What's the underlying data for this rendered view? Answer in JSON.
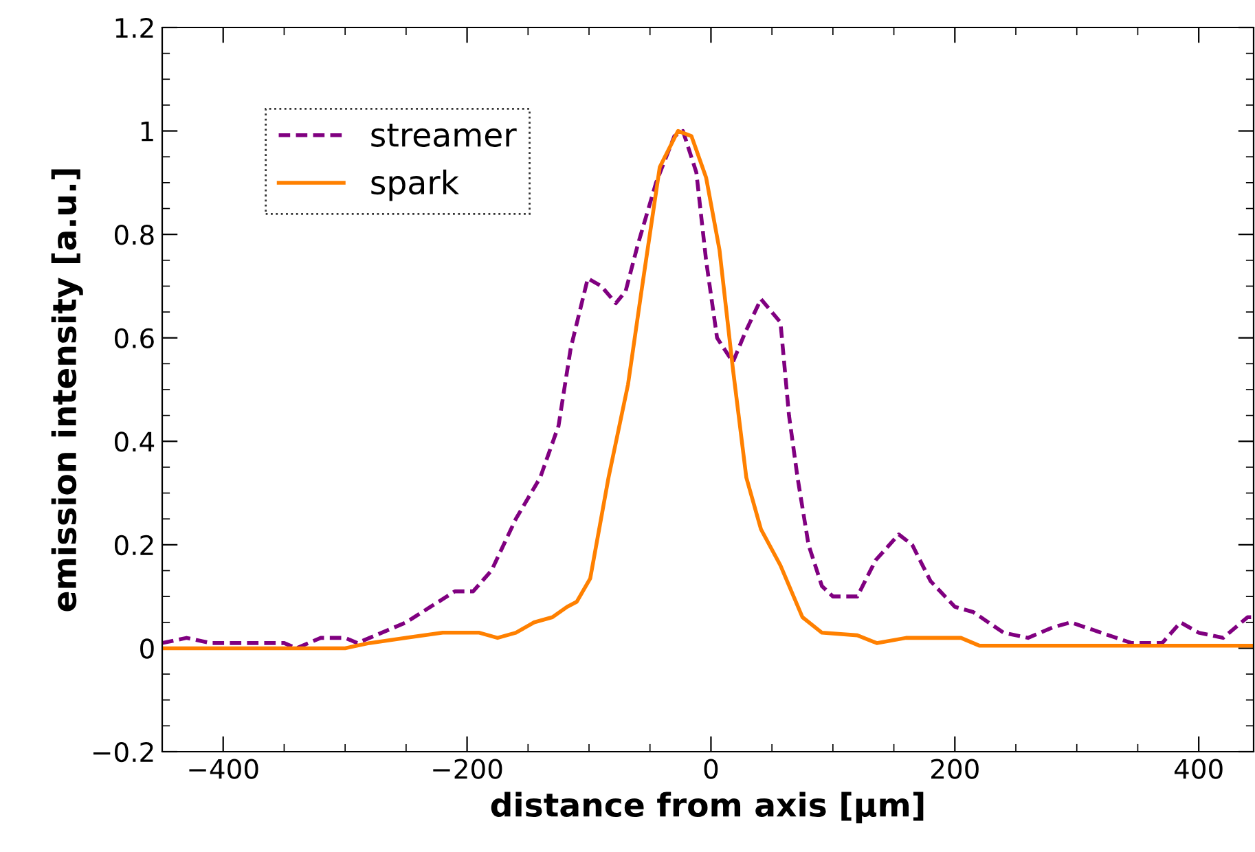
{
  "chart_data": {
    "type": "line",
    "xlabel": "distance from axis [µm]",
    "ylabel": "emission intensity [a.u.]",
    "xlim": [
      -450,
      445
    ],
    "ylim": [
      -0.2,
      1.2
    ],
    "xticks": [
      {
        "value": -400,
        "label": "−400"
      },
      {
        "value": -200,
        "label": "−200"
      },
      0,
      200,
      400
    ],
    "yticks": [
      {
        "value": -0.2,
        "label": "−0.2"
      },
      0,
      0.2,
      0.4,
      0.6,
      0.8,
      1,
      1.2
    ],
    "grid": false,
    "legend": "top left",
    "series": [
      {
        "name": "streamer",
        "color": "#800080",
        "line_style": "dashed",
        "x": [
          -450,
          -430,
          -410,
          -380,
          -350,
          -340,
          -320,
          -300,
          -290,
          -270,
          -250,
          -230,
          -210,
          -195,
          -180,
          -160,
          -140,
          -125,
          -115,
          -101,
          -90,
          -78,
          -70,
          -60,
          -45,
          -30,
          -23,
          -12,
          -4,
          5,
          18,
          28,
          41,
          57,
          64,
          71,
          80,
          91,
          100,
          120,
          135,
          154,
          165,
          180,
          200,
          215,
          240,
          260,
          280,
          295,
          320,
          345,
          370,
          385,
          400,
          420,
          440,
          445
        ],
        "values": [
          0.01,
          0.02,
          0.01,
          0.01,
          0.01,
          0.0,
          0.02,
          0.02,
          0.01,
          0.03,
          0.05,
          0.08,
          0.11,
          0.11,
          0.15,
          0.25,
          0.33,
          0.43,
          0.58,
          0.715,
          0.7,
          0.667,
          0.69,
          0.78,
          0.9,
          0.99,
          1.0,
          0.92,
          0.75,
          0.6,
          0.553,
          0.61,
          0.675,
          0.63,
          0.45,
          0.33,
          0.2,
          0.12,
          0.1,
          0.1,
          0.17,
          0.22,
          0.2,
          0.13,
          0.08,
          0.07,
          0.03,
          0.02,
          0.04,
          0.05,
          0.03,
          0.01,
          0.01,
          0.05,
          0.03,
          0.02,
          0.06,
          0.06
        ]
      },
      {
        "name": "spark",
        "color": "#ff8000",
        "line_style": "solid",
        "x": [
          -450,
          -400,
          -350,
          -300,
          -280,
          -250,
          -220,
          -190,
          -175,
          -160,
          -145,
          -130,
          -118,
          -110,
          -99,
          -84,
          -68,
          -57,
          -42,
          -27,
          -16,
          -4,
          7,
          18,
          29,
          41,
          57,
          75,
          91,
          120,
          136,
          160,
          205,
          220,
          300,
          380,
          445
        ],
        "values": [
          0.0,
          0.0,
          0.0,
          0.0,
          0.01,
          0.02,
          0.03,
          0.03,
          0.02,
          0.03,
          0.05,
          0.06,
          0.08,
          0.09,
          0.135,
          0.33,
          0.51,
          0.69,
          0.93,
          1.0,
          0.99,
          0.91,
          0.77,
          0.54,
          0.33,
          0.23,
          0.16,
          0.06,
          0.03,
          0.025,
          0.01,
          0.02,
          0.02,
          0.005,
          0.005,
          0.005,
          0.005
        ]
      }
    ]
  }
}
